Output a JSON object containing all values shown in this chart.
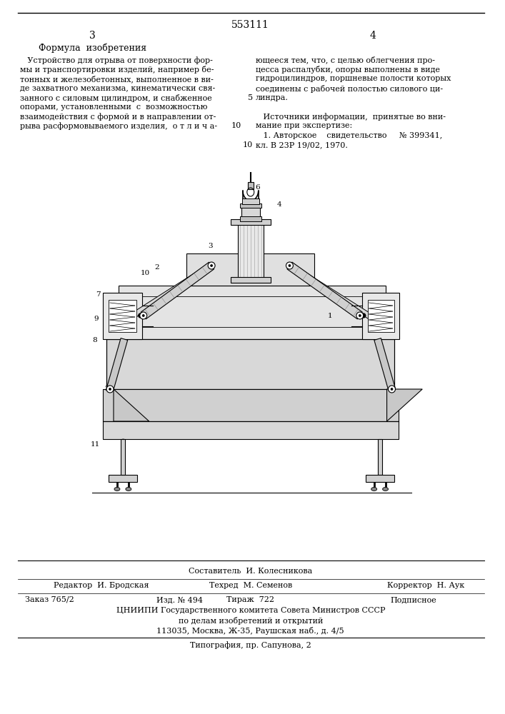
{
  "patent_number": "553111",
  "page_left": "3",
  "page_right": "4",
  "section_title": "Формула  изобретения",
  "left_col_lines": [
    "   Устройство для отрыва от поверхности фор-",
    "мы и транспортировки изделий, например бе-",
    "тонных и железобетонных, выполненное в ви-",
    "де захватного механизма, кинематически свя-",
    "занного с силовым цилиндром, и снабженное",
    "опорами, установленными  с  возможностью",
    "взаимодействия с формой и в направлении от-",
    "рыва расформовываемого изделия,  о т л и ч а-"
  ],
  "right_col_lines": [
    "ющееся тем, что, с целью облегчения про-",
    "цесса распалубки, опоры выполнены в виде",
    "гидроцилиндров, поршневые полости которых",
    "соединены с рабочей полостью силового ци-",
    "линдра.",
    "",
    "   Источники информации,  принятые во вни-",
    "мание при экспертизе:",
    "   1. Авторское    свидетельство     № 399341,",
    "кл. В 23Р 19/02, 1970."
  ],
  "bottom_line1": "Составитель  И. Колесникова",
  "bottom_line2_editor": "Редактор  И. Бродская",
  "bottom_line2_tech": "Техред  М. Семенов",
  "bottom_line2_corrector": "Корректор  Н. Аук",
  "bottom_line3_left": "Заказ 765/2",
  "bottom_line3_mid1": "Изд. № 494",
  "bottom_line3_mid2": "Тираж  722",
  "bottom_line3_right": "Подписное",
  "bottom_line4": "ЦНИИПИ Государственного комитета Совета Министров СССР",
  "bottom_line5": "по делам изобретений и открытий",
  "bottom_line6": "113035, Москва, Ж-35, Раушская наб., д. 4/5",
  "bottom_line7": "Типография, пр. Сапунова, 2",
  "bg_color": "#ffffff",
  "text_color": "#000000",
  "line_color": "#000000"
}
